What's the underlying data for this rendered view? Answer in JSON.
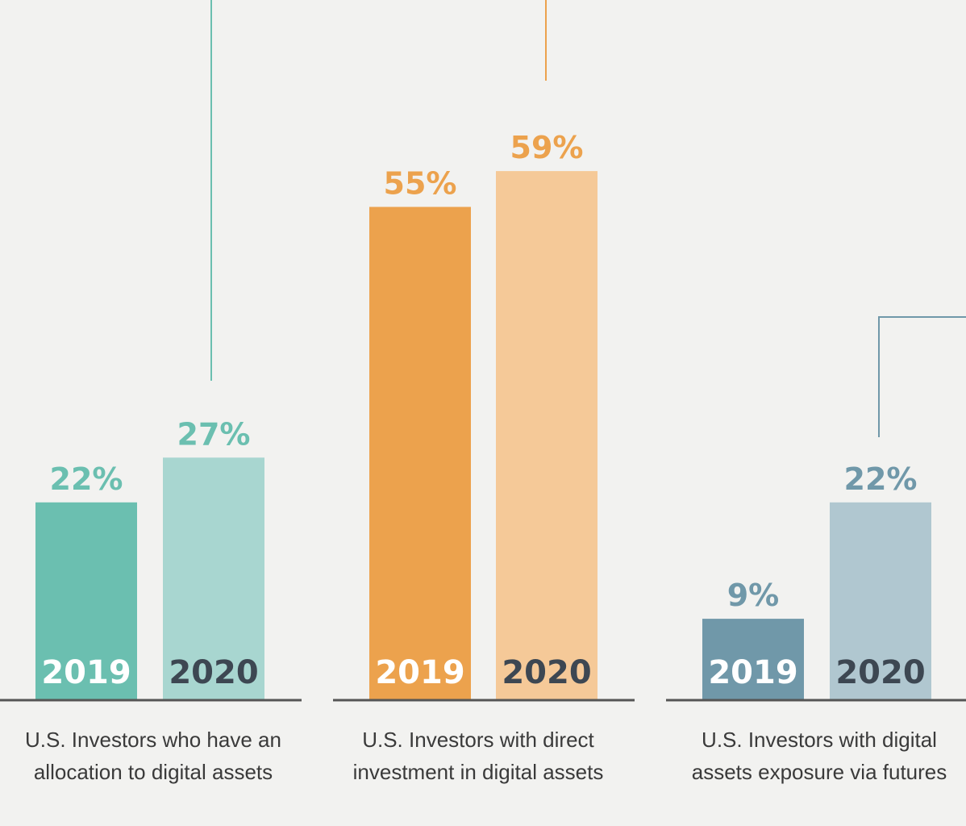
{
  "chart_data": [
    {
      "type": "bar",
      "categories": [
        "2019",
        "2020"
      ],
      "values": [
        22,
        27
      ],
      "value_labels": [
        "22%",
        "27%"
      ],
      "caption": "U.S. Investors who have an allocation to digital assets",
      "caption_lines": [
        "U.S. Investors who have an",
        "allocation to digital assets"
      ],
      "colors": [
        "#6bbfb0",
        "#a8d6d0"
      ],
      "label_color": "#6bbfb0",
      "year_label_colors": [
        "#ffffff",
        "#3d4752"
      ]
    },
    {
      "type": "bar",
      "categories": [
        "2019",
        "2020"
      ],
      "values": [
        55,
        59
      ],
      "value_labels": [
        "55%",
        "59%"
      ],
      "caption": "U.S. Investors with direct investment in digital assets",
      "caption_lines": [
        "U.S. Investors with direct",
        "investment in digital assets"
      ],
      "colors": [
        "#eca24d",
        "#f5c998"
      ],
      "label_color": "#eca24d",
      "year_label_colors": [
        "#ffffff",
        "#3d4752"
      ]
    },
    {
      "type": "bar",
      "categories": [
        "2019",
        "2020"
      ],
      "values": [
        9,
        22
      ],
      "value_labels": [
        "9%",
        "22%"
      ],
      "caption": "U.S. Investors with digital assets exposure via futures",
      "caption_lines": [
        "U.S. Investors with digital",
        "assets exposure via futures"
      ],
      "colors": [
        "#7098a9",
        "#b0c7d0"
      ],
      "label_color": "#7098a9",
      "year_label_colors": [
        "#ffffff",
        "#3d4752"
      ]
    }
  ],
  "colors": {
    "background": "#f2f2f0",
    "baseline": "#555555",
    "connector_teal": "#6bbfb0",
    "connector_orange": "#eca24d",
    "connector_slate": "#7098a9"
  }
}
